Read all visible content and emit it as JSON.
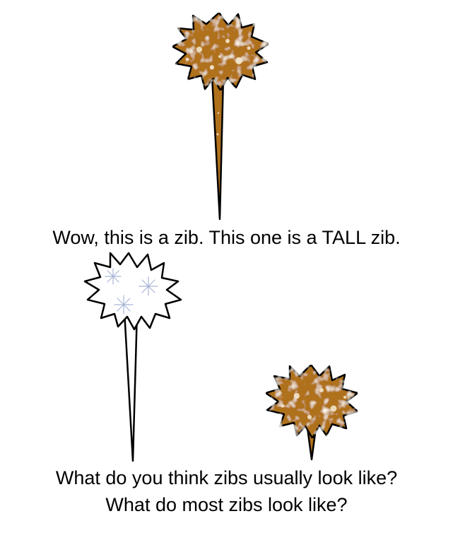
{
  "captions": {
    "intro": "Wow, this is a zib. This one is a TALL zib.",
    "question_1": "What do you think zibs usually look like?",
    "question_2": "What do most zibs look like?"
  },
  "illustrations": {
    "tall_zib": {
      "kind": "tall-zib",
      "head_color": "brown-speckled",
      "head_fill": "#b0711c"
    },
    "tall_white_zib": {
      "kind": "tall-zib",
      "head_color": "white-sparkle",
      "head_fill": "#ffffff"
    },
    "short_zib": {
      "kind": "short-zib",
      "head_color": "brown-speckled",
      "head_fill": "#b0711c"
    }
  },
  "colors": {
    "outline": "#000000",
    "brown": "#b0711c",
    "speckle": "#f3e7c9",
    "sparkle": "#a8b4d6"
  }
}
